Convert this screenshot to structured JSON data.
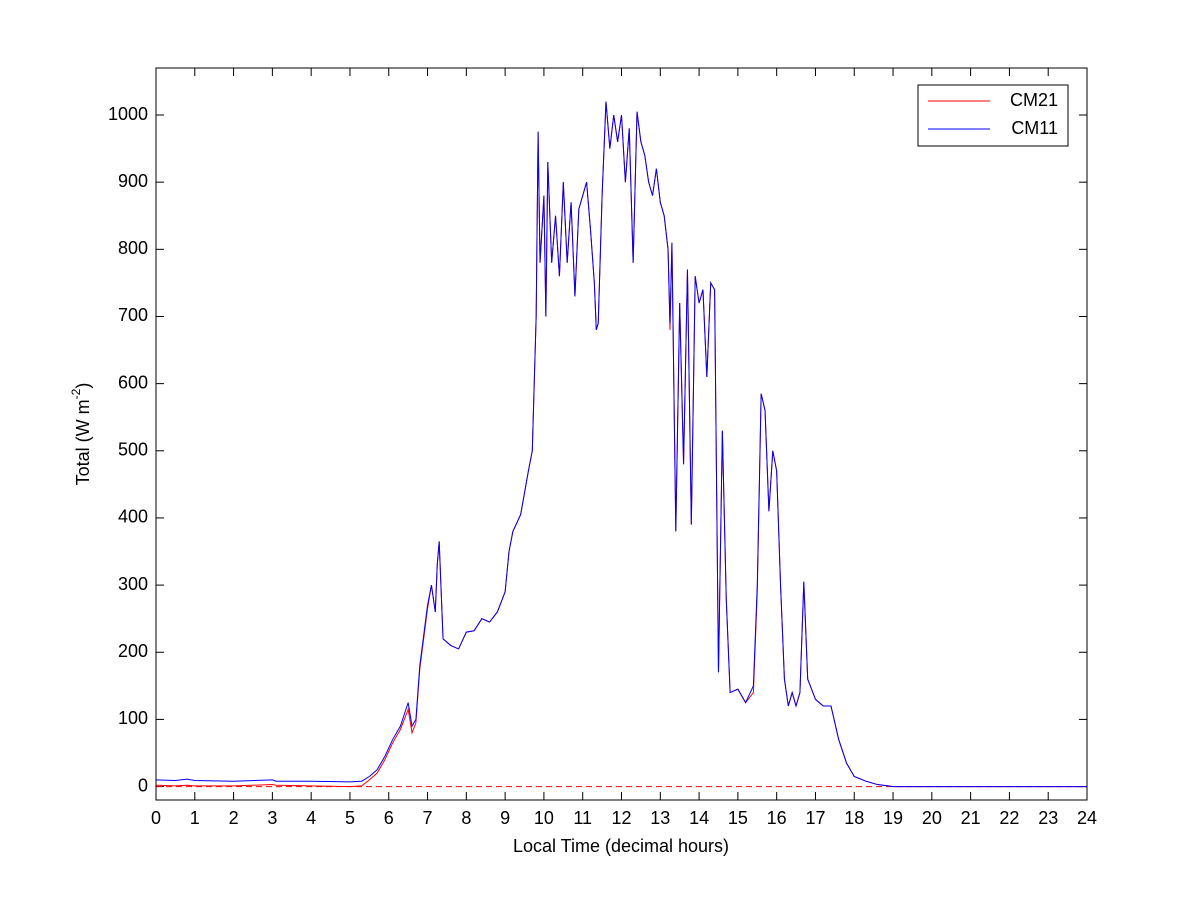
{
  "chart_data": {
    "type": "line",
    "xlabel": "Local Time (decimal hours)",
    "ylabel_parts": [
      "Total (W m",
      "-2",
      ")"
    ],
    "x": [
      0,
      0.5,
      0.8,
      1,
      2,
      3,
      3.1,
      4,
      5,
      5.3,
      5.5,
      5.7,
      5.9,
      6.1,
      6.3,
      6.5,
      6.6,
      6.7,
      6.8,
      7,
      7.1,
      7.2,
      7.25,
      7.3,
      7.4,
      7.6,
      7.8,
      8,
      8.2,
      8.4,
      8.6,
      8.8,
      9,
      9.1,
      9.2,
      9.4,
      9.6,
      9.7,
      9.75,
      9.8,
      9.85,
      9.9,
      10,
      10.05,
      10.1,
      10.2,
      10.3,
      10.4,
      10.5,
      10.6,
      10.7,
      10.8,
      10.9,
      11,
      11.1,
      11.2,
      11.3,
      11.35,
      11.4,
      11.5,
      11.6,
      11.7,
      11.8,
      11.9,
      12,
      12.1,
      12.2,
      12.3,
      12.4,
      12.5,
      12.6,
      12.7,
      12.8,
      12.9,
      13,
      13.1,
      13.2,
      13.25,
      13.3,
      13.4,
      13.5,
      13.6,
      13.7,
      13.8,
      13.9,
      14,
      14.1,
      14.2,
      14.3,
      14.4,
      14.5,
      14.6,
      14.7,
      14.8,
      15,
      15.2,
      15.4,
      15.5,
      15.6,
      15.7,
      15.8,
      15.9,
      16,
      16.1,
      16.2,
      16.3,
      16.4,
      16.5,
      16.6,
      16.7,
      16.8,
      17,
      17.2,
      17.4,
      17.6,
      17.8,
      18,
      18.3,
      18.6,
      19,
      24
    ],
    "series": [
      {
        "name": "CM21",
        "color": "#ff0000",
        "values": [
          2,
          1,
          2,
          1,
          1,
          3,
          2,
          1,
          0,
          1,
          10,
          20,
          40,
          65,
          85,
          115,
          80,
          95,
          175,
          265,
          300,
          260,
          330,
          365,
          220,
          210,
          205,
          230,
          232,
          250,
          245,
          260,
          290,
          350,
          380,
          405,
          470,
          500,
          600,
          700,
          975,
          780,
          880,
          700,
          930,
          780,
          850,
          760,
          900,
          780,
          870,
          730,
          860,
          880,
          900,
          830,
          750,
          680,
          690,
          880,
          1020,
          950,
          1000,
          960,
          1000,
          900,
          980,
          780,
          1005,
          960,
          940,
          900,
          880,
          920,
          870,
          850,
          800,
          680,
          810,
          380,
          720,
          480,
          770,
          390,
          760,
          720,
          740,
          610,
          750,
          740,
          170,
          530,
          280,
          140,
          145,
          125,
          140,
          290,
          585,
          560,
          410,
          500,
          470,
          300,
          160,
          120,
          140,
          120,
          140,
          305,
          160,
          130,
          120,
          120,
          70,
          35,
          15,
          8,
          3,
          0,
          0
        ]
      },
      {
        "name": "CM11",
        "color": "#0000ff",
        "values": [
          10,
          9,
          11,
          9,
          8,
          10,
          8,
          8,
          7,
          8,
          15,
          25,
          45,
          70,
          90,
          125,
          90,
          100,
          180,
          270,
          300,
          260,
          330,
          365,
          220,
          210,
          205,
          230,
          232,
          250,
          245,
          260,
          290,
          350,
          380,
          405,
          470,
          500,
          600,
          700,
          975,
          780,
          880,
          700,
          930,
          780,
          850,
          760,
          900,
          780,
          870,
          730,
          860,
          880,
          900,
          830,
          750,
          680,
          690,
          880,
          1020,
          950,
          1000,
          960,
          1000,
          900,
          980,
          780,
          1005,
          960,
          940,
          900,
          880,
          920,
          870,
          850,
          800,
          690,
          810,
          380,
          720,
          480,
          770,
          390,
          760,
          720,
          740,
          610,
          750,
          740,
          170,
          530,
          280,
          140,
          145,
          125,
          150,
          300,
          585,
          560,
          410,
          500,
          470,
          300,
          160,
          120,
          140,
          120,
          140,
          305,
          160,
          130,
          120,
          120,
          70,
          35,
          15,
          8,
          3,
          0,
          0
        ]
      }
    ],
    "reference_line": {
      "value": 0,
      "color": "#ff0000",
      "style": "dashed"
    },
    "xlim": [
      0,
      24
    ],
    "xticks": [
      0,
      1,
      2,
      3,
      4,
      5,
      6,
      7,
      8,
      9,
      10,
      11,
      12,
      13,
      14,
      15,
      16,
      17,
      18,
      19,
      20,
      21,
      22,
      23,
      24
    ],
    "ylim": [
      -20,
      1070
    ],
    "yticks": [
      0,
      100,
      200,
      300,
      400,
      500,
      600,
      700,
      800,
      900,
      1000
    ],
    "legend": "upper right"
  }
}
